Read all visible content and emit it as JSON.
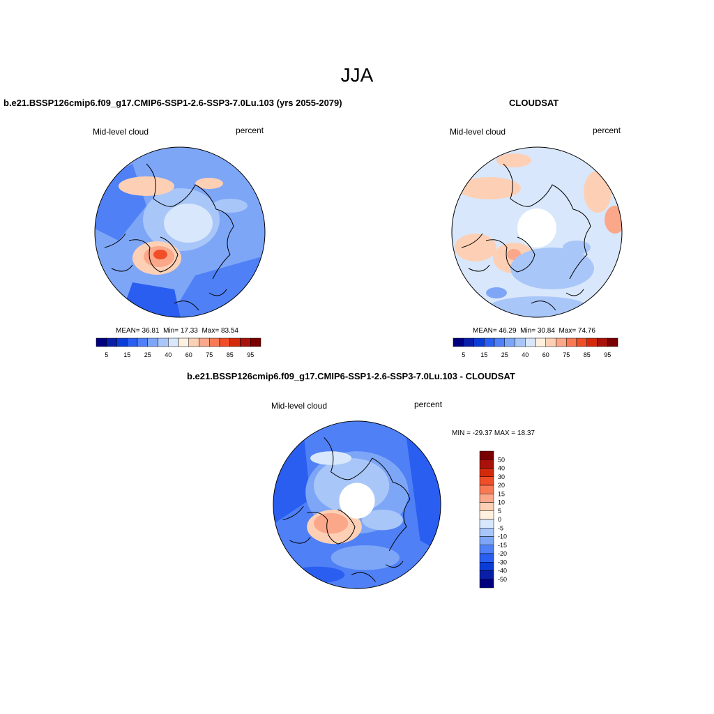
{
  "title": "JJA",
  "panels": [
    {
      "title": "b.e21.BSSP126cmip6.f09_g17.CMIP6-SSP1-2.6-SSP3-7.0Lu.103 (yrs 2055-2079)",
      "variable": "Mid-level cloud",
      "units": "percent",
      "stats": {
        "mean_label": "MEAN=",
        "mean": "36.81",
        "min_label": "Min=",
        "min": "17.33",
        "max_label": "Max=",
        "max": "83.54"
      },
      "colorbar_ticks": [
        "5",
        "15",
        "25",
        "40",
        "60",
        "75",
        "85",
        "95"
      ]
    },
    {
      "title": "CLOUDSAT",
      "variable": "Mid-level cloud",
      "units": "percent",
      "stats": {
        "mean_label": "MEAN=",
        "mean": "46.29",
        "min_label": "Min=",
        "min": "30.84",
        "max_label": "Max=",
        "max": "74.76"
      },
      "colorbar_ticks": [
        "5",
        "15",
        "25",
        "40",
        "60",
        "75",
        "85",
        "95"
      ]
    },
    {
      "title": "b.e21.BSSP126cmip6.f09_g17.CMIP6-SSP1-2.6-SSP3-7.0Lu.103 - CLOUDSAT",
      "variable": "Mid-level cloud",
      "units": "percent",
      "minmax": "MIN = -29.37 MAX =  18.37",
      "colorbar_ticks": [
        "50",
        "40",
        "30",
        "20",
        "15",
        "10",
        "5",
        "0",
        "-5",
        "-10",
        "-15",
        "-20",
        "-30",
        "-40",
        "-50"
      ]
    }
  ],
  "colors": {
    "abs_scale": [
      "#00007f",
      "#0a1fa8",
      "#0a3cd6",
      "#2a5ef0",
      "#4f80f5",
      "#7ea6f7",
      "#a9c6f9",
      "#d8e7fb",
      "#fff0e0",
      "#fdd0b5",
      "#fba78a",
      "#f77a55",
      "#f04e28",
      "#d42a0c",
      "#a8120a",
      "#7a0000"
    ],
    "diff_scale": [
      "#7a0000",
      "#a8120a",
      "#d42a0c",
      "#f04e28",
      "#f77a55",
      "#fba78a",
      "#fdd0b5",
      "#fff0e0",
      "#d8e7fb",
      "#a9c6f9",
      "#7ea6f7",
      "#4f80f5",
      "#2a5ef0",
      "#0a3cd6",
      "#0a1fa8",
      "#00007f"
    ]
  }
}
